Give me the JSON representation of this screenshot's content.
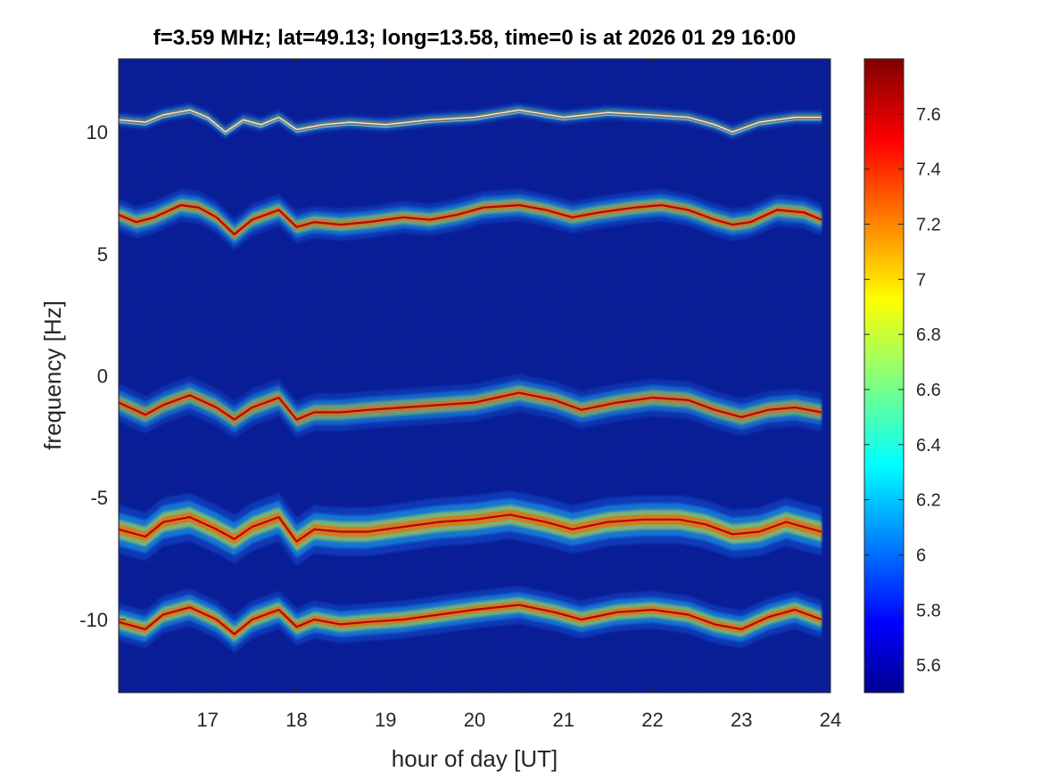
{
  "chart_data": {
    "type": "heatmap",
    "title": "f=3.59 MHz;  lat=49.13; long=13.58, time=0 is at 2026 01 29 16:00",
    "xlabel": "hour of day [UT]",
    "ylabel": "frequency [Hz]",
    "xlim": [
      16.0,
      24.0
    ],
    "ylim": [
      -13.0,
      13.0
    ],
    "x_ticks": [
      17,
      18,
      19,
      20,
      21,
      22,
      23,
      24
    ],
    "y_ticks": [
      10,
      5,
      0,
      -5,
      -10
    ],
    "colorbar": {
      "range": [
        5.5,
        7.8
      ],
      "ticks": [
        7.6,
        7.4,
        7.2,
        7.0,
        6.8,
        6.6,
        6.4,
        6.2,
        6.0,
        5.8,
        5.6
      ],
      "tick_labels": [
        "7.6",
        "7.4",
        "7.2",
        "7",
        "6.8",
        "6.6",
        "6.4",
        "6.2",
        "6",
        "5.8",
        "5.6"
      ],
      "colormap": "jet"
    },
    "grid": false,
    "background_color": "#0a1f9c",
    "traces": [
      {
        "name": "",
        "intensity": 0.55,
        "spread": 0.15,
        "points": [
          [
            16.0,
            10.5
          ],
          [
            16.3,
            10.4
          ],
          [
            16.5,
            10.7
          ],
          [
            16.8,
            10.9
          ],
          [
            17.0,
            10.6
          ],
          [
            17.2,
            10.0
          ],
          [
            17.4,
            10.5
          ],
          [
            17.6,
            10.3
          ],
          [
            17.8,
            10.6
          ],
          [
            18.0,
            10.1
          ],
          [
            18.3,
            10.3
          ],
          [
            18.6,
            10.4
          ],
          [
            19.0,
            10.3
          ],
          [
            19.5,
            10.5
          ],
          [
            20.0,
            10.6
          ],
          [
            20.5,
            10.9
          ],
          [
            21.0,
            10.6
          ],
          [
            21.5,
            10.8
          ],
          [
            22.0,
            10.7
          ],
          [
            22.4,
            10.6
          ],
          [
            22.7,
            10.3
          ],
          [
            22.9,
            10.0
          ],
          [
            23.2,
            10.4
          ],
          [
            23.6,
            10.6
          ],
          [
            23.9,
            10.6
          ]
        ]
      },
      {
        "name": "",
        "intensity": 0.85,
        "spread": 0.3,
        "points": [
          [
            16.0,
            6.6
          ],
          [
            16.2,
            6.3
          ],
          [
            16.4,
            6.5
          ],
          [
            16.7,
            7.0
          ],
          [
            16.9,
            6.9
          ],
          [
            17.1,
            6.5
          ],
          [
            17.3,
            5.8
          ],
          [
            17.5,
            6.4
          ],
          [
            17.8,
            6.8
          ],
          [
            18.0,
            6.1
          ],
          [
            18.2,
            6.3
          ],
          [
            18.5,
            6.2
          ],
          [
            18.8,
            6.3
          ],
          [
            19.2,
            6.5
          ],
          [
            19.5,
            6.4
          ],
          [
            19.8,
            6.6
          ],
          [
            20.1,
            6.9
          ],
          [
            20.5,
            7.0
          ],
          [
            20.8,
            6.8
          ],
          [
            21.1,
            6.5
          ],
          [
            21.4,
            6.7
          ],
          [
            21.8,
            6.9
          ],
          [
            22.1,
            7.0
          ],
          [
            22.4,
            6.8
          ],
          [
            22.7,
            6.4
          ],
          [
            22.9,
            6.2
          ],
          [
            23.1,
            6.3
          ],
          [
            23.4,
            6.8
          ],
          [
            23.7,
            6.7
          ],
          [
            23.9,
            6.4
          ]
        ]
      },
      {
        "name": "",
        "intensity": 0.8,
        "spread": 0.35,
        "points": [
          [
            16.0,
            -1.1
          ],
          [
            16.3,
            -1.6
          ],
          [
            16.5,
            -1.2
          ],
          [
            16.8,
            -0.8
          ],
          [
            17.1,
            -1.3
          ],
          [
            17.3,
            -1.8
          ],
          [
            17.5,
            -1.3
          ],
          [
            17.8,
            -0.9
          ],
          [
            18.0,
            -1.8
          ],
          [
            18.2,
            -1.5
          ],
          [
            18.5,
            -1.5
          ],
          [
            18.8,
            -1.4
          ],
          [
            19.2,
            -1.3
          ],
          [
            19.6,
            -1.2
          ],
          [
            20.0,
            -1.1
          ],
          [
            20.5,
            -0.7
          ],
          [
            20.9,
            -1.0
          ],
          [
            21.2,
            -1.4
          ],
          [
            21.6,
            -1.1
          ],
          [
            22.0,
            -0.9
          ],
          [
            22.4,
            -1.0
          ],
          [
            22.7,
            -1.4
          ],
          [
            23.0,
            -1.7
          ],
          [
            23.3,
            -1.4
          ],
          [
            23.6,
            -1.3
          ],
          [
            23.9,
            -1.5
          ]
        ]
      },
      {
        "name": "",
        "intensity": 1.0,
        "spread": 0.45,
        "points": [
          [
            16.0,
            -6.3
          ],
          [
            16.3,
            -6.6
          ],
          [
            16.5,
            -6.0
          ],
          [
            16.8,
            -5.8
          ],
          [
            17.1,
            -6.3
          ],
          [
            17.3,
            -6.7
          ],
          [
            17.5,
            -6.2
          ],
          [
            17.8,
            -5.8
          ],
          [
            18.0,
            -6.8
          ],
          [
            18.2,
            -6.3
          ],
          [
            18.5,
            -6.4
          ],
          [
            18.8,
            -6.4
          ],
          [
            19.2,
            -6.2
          ],
          [
            19.6,
            -6.0
          ],
          [
            20.0,
            -5.9
          ],
          [
            20.4,
            -5.7
          ],
          [
            20.8,
            -6.0
          ],
          [
            21.1,
            -6.3
          ],
          [
            21.5,
            -6.0
          ],
          [
            21.9,
            -5.9
          ],
          [
            22.3,
            -5.9
          ],
          [
            22.6,
            -6.1
          ],
          [
            22.9,
            -6.5
          ],
          [
            23.2,
            -6.4
          ],
          [
            23.5,
            -6.0
          ],
          [
            23.9,
            -6.4
          ]
        ]
      },
      {
        "name": "",
        "intensity": 0.95,
        "spread": 0.35,
        "points": [
          [
            16.0,
            -10.1
          ],
          [
            16.3,
            -10.4
          ],
          [
            16.5,
            -9.8
          ],
          [
            16.8,
            -9.5
          ],
          [
            17.1,
            -10.0
          ],
          [
            17.3,
            -10.6
          ],
          [
            17.5,
            -10.0
          ],
          [
            17.8,
            -9.6
          ],
          [
            18.0,
            -10.3
          ],
          [
            18.2,
            -10.0
          ],
          [
            18.5,
            -10.2
          ],
          [
            18.8,
            -10.1
          ],
          [
            19.2,
            -10.0
          ],
          [
            19.6,
            -9.8
          ],
          [
            20.0,
            -9.6
          ],
          [
            20.5,
            -9.4
          ],
          [
            20.9,
            -9.7
          ],
          [
            21.2,
            -10.0
          ],
          [
            21.6,
            -9.7
          ],
          [
            22.0,
            -9.6
          ],
          [
            22.4,
            -9.8
          ],
          [
            22.7,
            -10.2
          ],
          [
            23.0,
            -10.4
          ],
          [
            23.3,
            -9.9
          ],
          [
            23.6,
            -9.6
          ],
          [
            23.9,
            -10.0
          ]
        ]
      }
    ]
  }
}
